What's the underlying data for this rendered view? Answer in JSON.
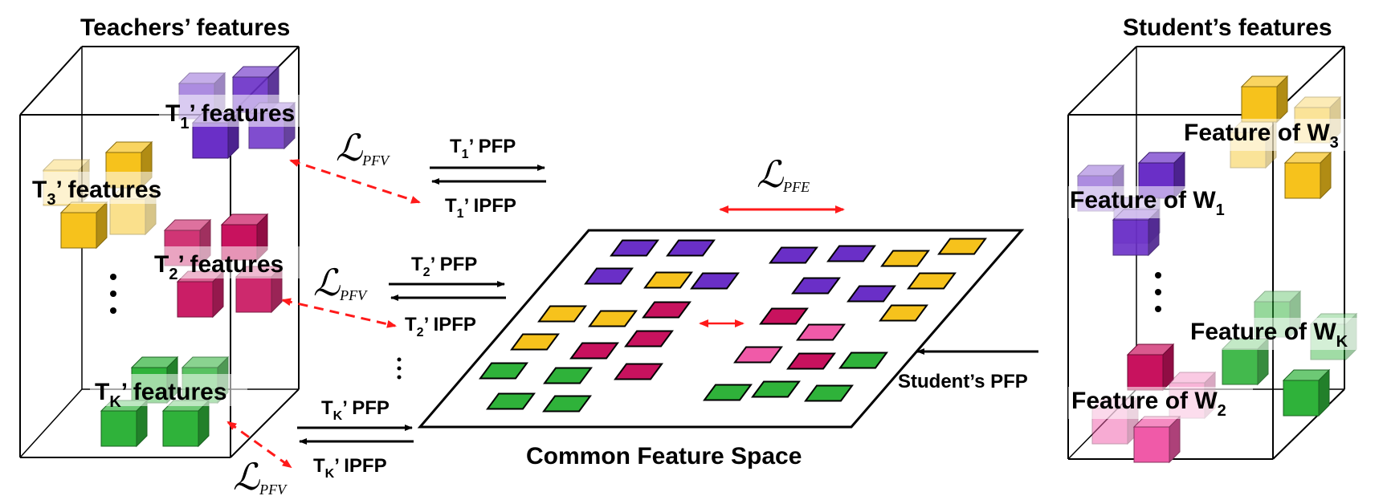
{
  "teachers_title": "Teachers’ features",
  "students_title": "Student’s features",
  "common_space_label": "Common Feature Space",
  "teacher_labels": {
    "t1": {
      "prefix": "T",
      "sub": "1",
      "suffix": "’ features"
    },
    "t3": {
      "prefix": "T",
      "sub": "3",
      "suffix": "’ features"
    },
    "t2": {
      "prefix": "T",
      "sub": "2",
      "suffix": "’ features"
    },
    "tk": {
      "prefix": "T",
      "sub": "K",
      "suffix": "’ features"
    }
  },
  "student_labels": {
    "w3": {
      "prefix": "Feature of W",
      "sub": "3"
    },
    "w1": {
      "prefix": "Feature of W",
      "sub": "1"
    },
    "wk": {
      "prefix": "Feature of W",
      "sub": "K"
    },
    "w2": {
      "prefix": "Feature of W",
      "sub": "2"
    }
  },
  "arrows": {
    "t1_pfp": {
      "prefix": "T",
      "sub": "1",
      "suffix": "’ PFP"
    },
    "t1_ipfp": {
      "prefix": "T",
      "sub": "1",
      "suffix": "’ IPFP"
    },
    "t2_pfp": {
      "prefix": "T",
      "sub": "2",
      "suffix": "’ PFP"
    },
    "t2_ipfp": {
      "prefix": "T",
      "sub": "2",
      "suffix": "’ IPFP"
    },
    "tk_pfp": {
      "prefix": "T",
      "sub": "K",
      "suffix": "’ PFP"
    },
    "tk_ipfp": {
      "prefix": "T",
      "sub": "K",
      "suffix": "’ IPFP"
    },
    "student_pfp": "Student’s PFP"
  },
  "losses": {
    "pfv": {
      "symbol": "ℒ",
      "sub": "PFV"
    },
    "pfe": {
      "symbol": "ℒ",
      "sub": "PFE"
    }
  },
  "colors": {
    "purple": "#6a2fc7",
    "yellow": "#f6c21c",
    "magenta": "#c8125e",
    "green": "#2fb23a",
    "pink": "#f05aa8",
    "red_dashed": "#ff1a1a"
  }
}
